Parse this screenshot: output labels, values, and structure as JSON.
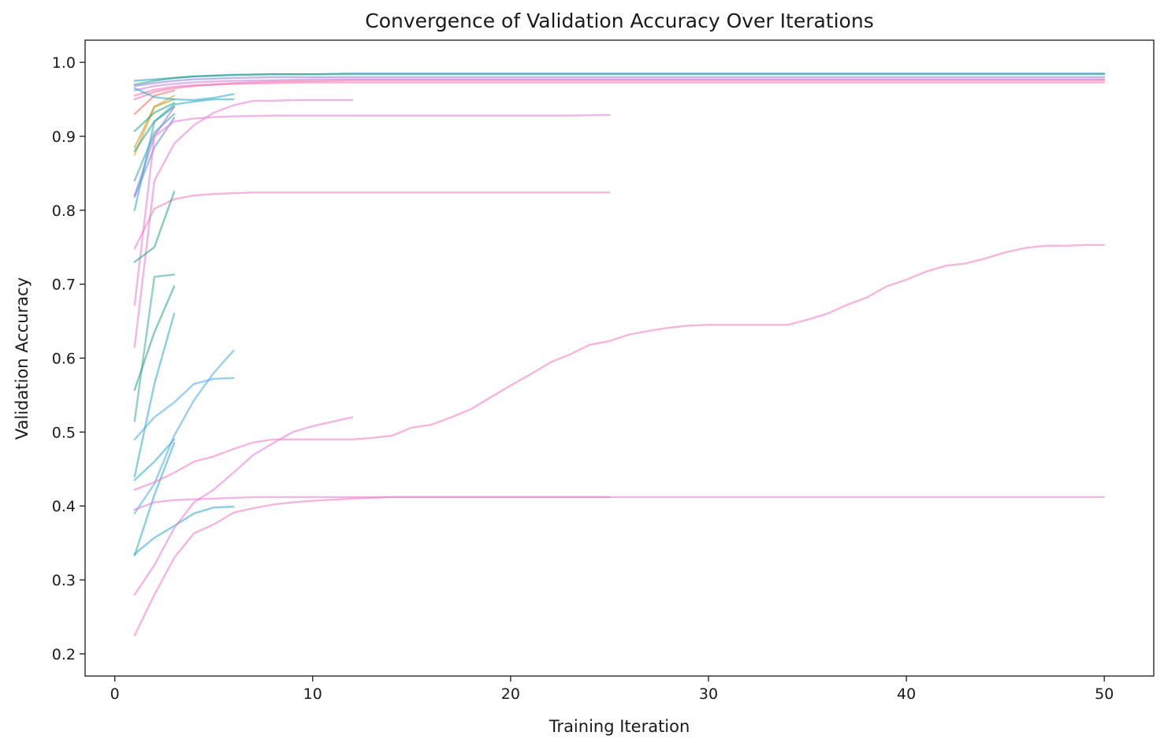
{
  "chart_data": {
    "type": "line",
    "title": "Convergence of Validation Accuracy Over Iterations",
    "xlabel": "Training Iteration",
    "ylabel": "Validation Accuracy",
    "xlim": [
      -1.5,
      52.5
    ],
    "ylim": [
      0.17,
      1.03
    ],
    "xticks": [
      "0",
      "10",
      "20",
      "30",
      "40",
      "50"
    ],
    "yticks": [
      "0.2",
      "0.3",
      "0.4",
      "0.5",
      "0.6",
      "0.7",
      "0.8",
      "0.9",
      "1.0"
    ],
    "grid": false,
    "series": [
      {
        "color": "#1f9fd0",
        "x": [
          1,
          2,
          3,
          4,
          5,
          6,
          8,
          10,
          12,
          14,
          16,
          18,
          20,
          25,
          30,
          35,
          40,
          45,
          50
        ],
        "y": [
          0.975,
          0.977,
          0.979,
          0.981,
          0.982,
          0.983,
          0.984,
          0.984,
          0.985,
          0.985,
          0.985,
          0.985,
          0.985,
          0.985,
          0.985,
          0.985,
          0.985,
          0.985,
          0.985
        ]
      },
      {
        "color": "#2e9e7e",
        "x": [
          1,
          2,
          3,
          4,
          5,
          6,
          8,
          10,
          12,
          14,
          16,
          18,
          20,
          25,
          30,
          35,
          40,
          45,
          50
        ],
        "y": [
          0.97,
          0.975,
          0.979,
          0.981,
          0.982,
          0.983,
          0.984,
          0.984,
          0.984,
          0.984,
          0.984,
          0.984,
          0.984,
          0.984,
          0.984,
          0.984,
          0.984,
          0.984,
          0.984
        ]
      },
      {
        "color": "#8a7de0",
        "x": [
          1,
          2,
          3,
          4,
          5,
          6,
          8,
          10,
          12,
          14,
          16,
          18,
          20,
          25,
          30,
          35,
          40,
          45,
          50
        ],
        "y": [
          0.968,
          0.972,
          0.975,
          0.977,
          0.978,
          0.979,
          0.98,
          0.98,
          0.98,
          0.98,
          0.98,
          0.98,
          0.98,
          0.98,
          0.98,
          0.98,
          0.98,
          0.98,
          0.98
        ]
      },
      {
        "color": "#c77dd8",
        "x": [
          1,
          2,
          3,
          4,
          5,
          6,
          8,
          10,
          12,
          14,
          16,
          18,
          20,
          25,
          30,
          35,
          40,
          45,
          50
        ],
        "y": [
          0.962,
          0.968,
          0.971,
          0.973,
          0.974,
          0.975,
          0.976,
          0.977,
          0.977,
          0.977,
          0.977,
          0.977,
          0.977,
          0.977,
          0.977,
          0.977,
          0.977,
          0.977,
          0.977
        ]
      },
      {
        "color": "#f06fb0",
        "x": [
          1,
          2,
          3,
          4,
          5,
          6,
          8,
          10,
          12,
          14,
          16,
          18,
          20,
          25,
          30,
          35,
          40,
          45,
          50
        ],
        "y": [
          0.955,
          0.963,
          0.967,
          0.969,
          0.97,
          0.971,
          0.972,
          0.973,
          0.973,
          0.973,
          0.973,
          0.973,
          0.973,
          0.973,
          0.973,
          0.973,
          0.973,
          0.973,
          0.973
        ]
      },
      {
        "color": "#f06fb0",
        "x": [
          1,
          2,
          3,
          4,
          5,
          6,
          8,
          10,
          12,
          14,
          16,
          18,
          20,
          25,
          30,
          35,
          40,
          45,
          50
        ],
        "y": [
          0.95,
          0.96,
          0.965,
          0.968,
          0.97,
          0.972,
          0.974,
          0.975,
          0.976,
          0.976,
          0.976,
          0.976,
          0.976,
          0.976,
          0.976,
          0.976,
          0.976,
          0.976,
          0.976
        ]
      },
      {
        "color": "#e8705a",
        "x": [
          1,
          2,
          3
        ],
        "y": [
          0.93,
          0.955,
          0.962
        ]
      },
      {
        "color": "#e0a030",
        "x": [
          1,
          2,
          3
        ],
        "y": [
          0.875,
          0.94,
          0.955
        ]
      },
      {
        "color": "#b0a030",
        "x": [
          1,
          2,
          3
        ],
        "y": [
          0.885,
          0.94,
          0.95
        ]
      },
      {
        "color": "#2e9e7e",
        "x": [
          1,
          2,
          3
        ],
        "y": [
          0.907,
          0.932,
          0.945
        ]
      },
      {
        "color": "#2e9e7e",
        "x": [
          1,
          2,
          3
        ],
        "y": [
          0.88,
          0.92,
          0.94
        ]
      },
      {
        "color": "#3aa0a0",
        "x": [
          1,
          2,
          3
        ],
        "y": [
          0.84,
          0.905,
          0.93
        ]
      },
      {
        "color": "#6f7fd8",
        "x": [
          1,
          2,
          3
        ],
        "y": [
          0.818,
          0.885,
          0.925
        ]
      },
      {
        "color": "#9a7ad8",
        "x": [
          1,
          2,
          3
        ],
        "y": [
          0.82,
          0.9,
          0.94
        ]
      },
      {
        "color": "#2aa8c8",
        "x": [
          1,
          2,
          3,
          4,
          5,
          6
        ],
        "y": [
          0.965,
          0.953,
          0.95,
          0.949,
          0.952,
          0.957
        ]
      },
      {
        "color": "#2aa8c8",
        "x": [
          1,
          2,
          3,
          4,
          5,
          6
        ],
        "y": [
          0.8,
          0.92,
          0.943,
          0.947,
          0.95,
          0.95
        ]
      },
      {
        "color": "#e878d8",
        "x": [
          1,
          2,
          3,
          4,
          5,
          6,
          7,
          8,
          9,
          10,
          11,
          12
        ],
        "y": [
          0.615,
          0.84,
          0.89,
          0.915,
          0.932,
          0.942,
          0.948,
          0.948,
          0.949,
          0.949,
          0.949,
          0.949
        ]
      },
      {
        "color": "#e878d8",
        "x": [
          1,
          2,
          3,
          4,
          5,
          6,
          8,
          10,
          12,
          15,
          20,
          23,
          25
        ],
        "y": [
          0.672,
          0.9,
          0.92,
          0.924,
          0.926,
          0.927,
          0.928,
          0.928,
          0.928,
          0.928,
          0.928,
          0.928,
          0.929
        ]
      },
      {
        "color": "#f078c0",
        "x": [
          1,
          2,
          3,
          4,
          5,
          6,
          7,
          8,
          10,
          15,
          20,
          25
        ],
        "y": [
          0.748,
          0.802,
          0.815,
          0.82,
          0.822,
          0.823,
          0.824,
          0.824,
          0.824,
          0.824,
          0.824,
          0.824
        ]
      },
      {
        "color": "#2e9e7e",
        "x": [
          1,
          2,
          3
        ],
        "y": [
          0.73,
          0.75,
          0.825
        ]
      },
      {
        "color": "#3aa89a",
        "x": [
          1,
          2,
          3
        ],
        "y": [
          0.515,
          0.71,
          0.713
        ]
      },
      {
        "color": "#2e9e7e",
        "x": [
          1,
          2,
          3
        ],
        "y": [
          0.557,
          0.635,
          0.697
        ]
      },
      {
        "color": "#2aa8c8",
        "x": [
          1,
          2,
          3
        ],
        "y": [
          0.44,
          0.565,
          0.66
        ]
      },
      {
        "color": "#2aa8c8",
        "x": [
          1,
          2,
          3
        ],
        "y": [
          0.435,
          0.46,
          0.49
        ]
      },
      {
        "color": "#4aa8e0",
        "x": [
          1,
          2,
          3,
          4,
          5,
          6
        ],
        "y": [
          0.49,
          0.52,
          0.54,
          0.565,
          0.572,
          0.573
        ]
      },
      {
        "color": "#4aa8e0",
        "x": [
          1,
          2,
          3,
          4,
          5,
          6
        ],
        "y": [
          0.39,
          0.43,
          0.495,
          0.543,
          0.58,
          0.61
        ]
      },
      {
        "color": "#2aa8c8",
        "x": [
          1,
          2,
          3,
          4,
          5,
          6
        ],
        "y": [
          0.335,
          0.357,
          0.373,
          0.39,
          0.398,
          0.399
        ]
      },
      {
        "color": "#2aa8c8",
        "x": [
          1,
          2,
          3
        ],
        "y": [
          0.333,
          0.415,
          0.485
        ]
      },
      {
        "color": "#e878d8",
        "x": [
          1,
          2,
          3,
          4,
          5,
          6,
          7,
          8,
          9,
          10,
          11,
          12
        ],
        "y": [
          0.28,
          0.32,
          0.37,
          0.405,
          0.422,
          0.445,
          0.469,
          0.485,
          0.5,
          0.508,
          0.514,
          0.52
        ]
      },
      {
        "color": "#f078c0",
        "x": [
          1,
          2,
          3,
          4,
          5,
          6,
          7,
          8,
          9,
          10,
          11,
          12,
          13,
          14,
          15,
          16,
          17,
          18,
          19,
          20,
          21,
          22,
          23,
          24,
          25,
          26,
          27,
          28,
          29,
          30,
          31,
          32,
          33,
          34,
          35,
          36,
          37,
          38,
          39,
          40,
          41,
          42,
          43,
          44,
          45,
          46,
          47,
          48,
          49,
          50
        ],
        "y": [
          0.422,
          0.432,
          0.445,
          0.46,
          0.467,
          0.477,
          0.486,
          0.49,
          0.49,
          0.49,
          0.49,
          0.49,
          0.492,
          0.495,
          0.506,
          0.51,
          0.52,
          0.531,
          0.547,
          0.563,
          0.578,
          0.594,
          0.605,
          0.618,
          0.623,
          0.632,
          0.637,
          0.641,
          0.644,
          0.645,
          0.645,
          0.645,
          0.645,
          0.645,
          0.652,
          0.66,
          0.672,
          0.682,
          0.697,
          0.706,
          0.717,
          0.725,
          0.728,
          0.735,
          0.743,
          0.749,
          0.752,
          0.752,
          0.753,
          0.753
        ]
      },
      {
        "color": "#e878d8",
        "x": [
          1,
          2,
          3,
          4,
          5,
          6,
          7,
          8,
          10,
          15,
          20,
          25,
          30,
          35,
          40,
          45,
          50
        ],
        "y": [
          0.395,
          0.405,
          0.408,
          0.409,
          0.41,
          0.411,
          0.412,
          0.412,
          0.412,
          0.412,
          0.412,
          0.412,
          0.412,
          0.412,
          0.412,
          0.412,
          0.412
        ]
      },
      {
        "color": "#f078c0",
        "x": [
          1,
          2,
          3,
          4,
          5,
          6,
          7,
          8,
          9,
          10,
          12,
          14,
          16,
          20,
          25
        ],
        "y": [
          0.225,
          0.28,
          0.33,
          0.363,
          0.375,
          0.391,
          0.397,
          0.402,
          0.405,
          0.407,
          0.41,
          0.412,
          0.412,
          0.412,
          0.412
        ]
      }
    ]
  }
}
